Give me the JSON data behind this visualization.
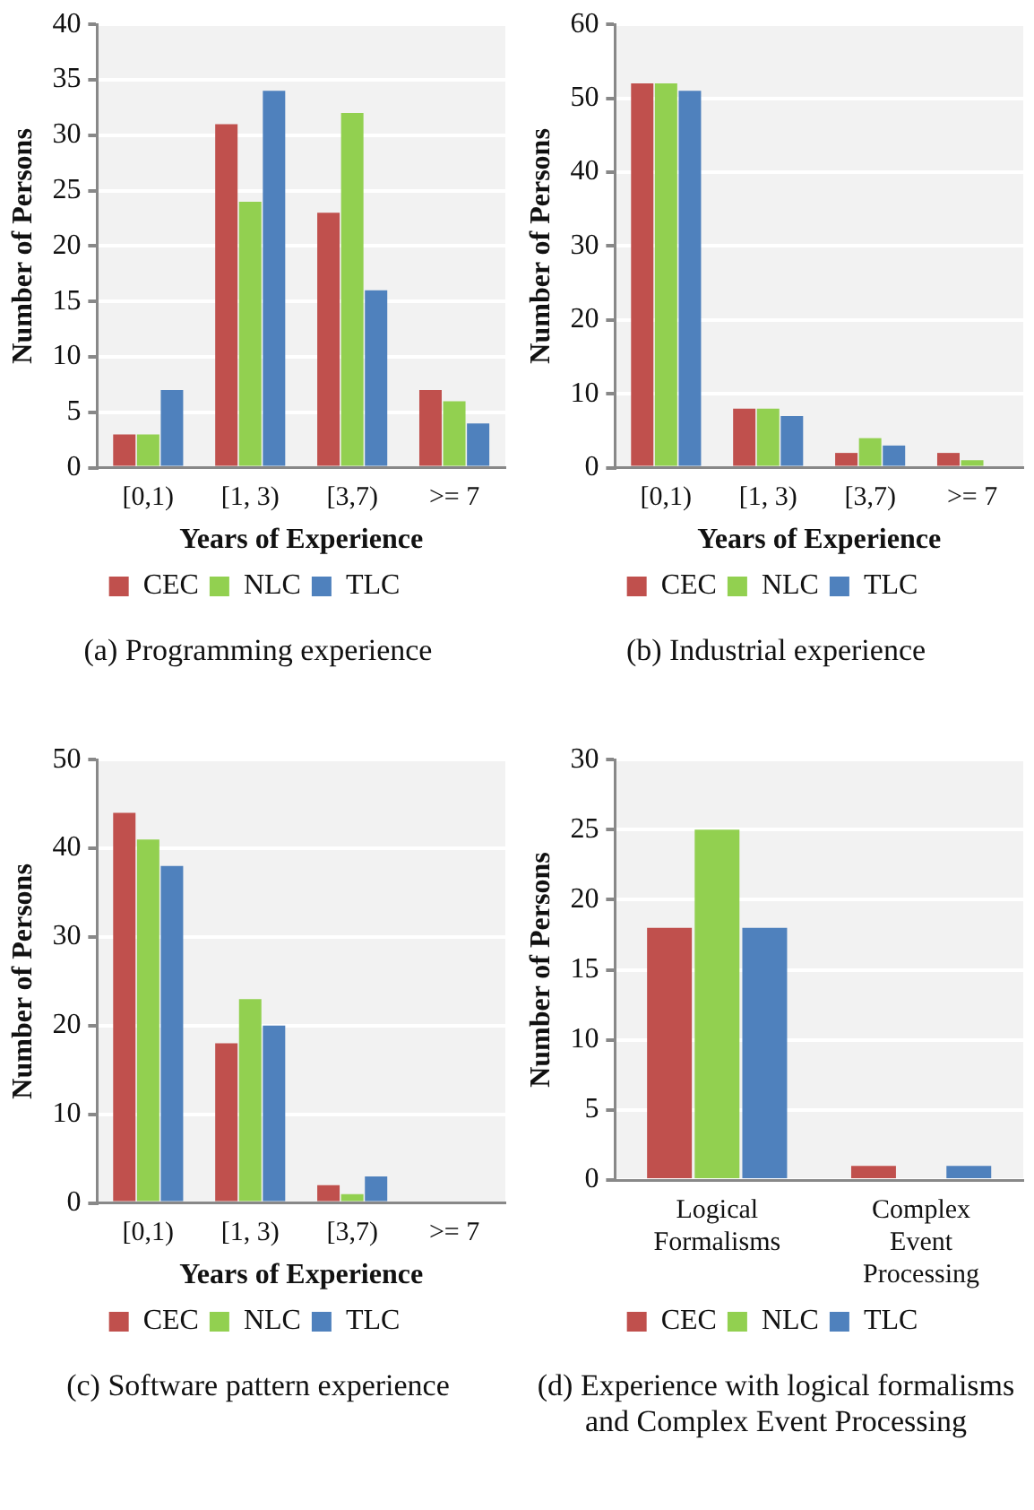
{
  "chart_data": [
    {
      "type": "bar",
      "categories": [
        "[0,1)",
        "[1, 3)",
        "[3,7)",
        ">= 7"
      ],
      "xlabel": "Years of Experience",
      "ylabel": "Number of Persons",
      "ylim": [
        0,
        40
      ],
      "yticks": [
        0,
        5,
        10,
        15,
        20,
        25,
        30,
        35,
        40
      ],
      "grid": "y",
      "legend": "bottom",
      "annotations": [
        "(a) Programming experience"
      ],
      "series": [
        {
          "name": "CEC",
          "color": "#c0504d",
          "values": [
            3,
            31,
            23,
            7
          ]
        },
        {
          "name": "NLC",
          "color": "#92d050",
          "values": [
            3,
            24,
            32,
            6
          ]
        },
        {
          "name": "TLC",
          "color": "#4f81bd",
          "values": [
            7,
            34,
            16,
            4
          ]
        }
      ]
    },
    {
      "type": "bar",
      "categories": [
        "[0,1)",
        "[1, 3)",
        "[3,7)",
        ">= 7"
      ],
      "xlabel": "Years of Experience",
      "ylabel": "Number of Persons",
      "ylim": [
        0,
        60
      ],
      "yticks": [
        0,
        10,
        20,
        30,
        40,
        50,
        60
      ],
      "grid": "y",
      "legend": "bottom",
      "annotations": [
        "(b) Industrial experience"
      ],
      "series": [
        {
          "name": "CEC",
          "color": "#c0504d",
          "values": [
            52,
            8,
            2,
            2
          ]
        },
        {
          "name": "NLC",
          "color": "#92d050",
          "values": [
            52,
            8,
            4,
            1
          ]
        },
        {
          "name": "TLC",
          "color": "#4f81bd",
          "values": [
            51,
            7,
            3,
            0
          ]
        }
      ]
    },
    {
      "type": "bar",
      "categories": [
        "[0,1)",
        "[1, 3)",
        "[3,7)",
        ">= 7"
      ],
      "xlabel": "Years of Experience",
      "ylabel": "Number of Persons",
      "ylim": [
        0,
        50
      ],
      "yticks": [
        0,
        10,
        20,
        30,
        40,
        50
      ],
      "grid": "y",
      "legend": "bottom",
      "annotations": [
        "(c) Software pattern experience"
      ],
      "series": [
        {
          "name": "CEC",
          "color": "#c0504d",
          "values": [
            44,
            18,
            2,
            0
          ]
        },
        {
          "name": "NLC",
          "color": "#92d050",
          "values": [
            41,
            23,
            1,
            0
          ]
        },
        {
          "name": "TLC",
          "color": "#4f81bd",
          "values": [
            38,
            20,
            3,
            0
          ]
        }
      ]
    },
    {
      "type": "bar",
      "categories": [
        "Logical Formalisms",
        "Complex Event Processing"
      ],
      "ylabel": "Number of Persons",
      "ylim": [
        0,
        30
      ],
      "yticks": [
        0,
        5,
        10,
        15,
        20,
        25,
        30
      ],
      "grid": "y",
      "legend": "bottom",
      "annotations": [
        "(d) Experience with logical formalisms and Complex Event Processing"
      ],
      "series": [
        {
          "name": "CEC",
          "color": "#c0504d",
          "values": [
            18,
            1
          ]
        },
        {
          "name": "NLC",
          "color": "#92d050",
          "values": [
            25,
            0
          ]
        },
        {
          "name": "TLC",
          "color": "#4f81bd",
          "values": [
            18,
            1
          ]
        }
      ]
    }
  ]
}
